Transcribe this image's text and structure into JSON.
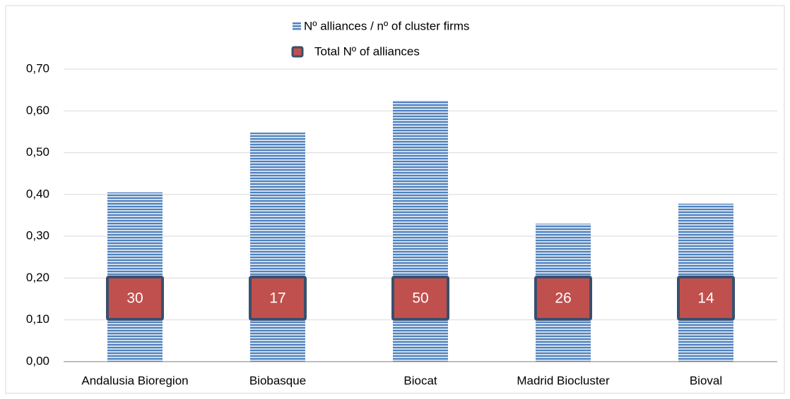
{
  "chart_data": {
    "type": "bar",
    "categories": [
      "Andalusia Bioregion",
      "Biobasque",
      "Biocat",
      "Madrid Biocluster",
      "Bioval"
    ],
    "series": [
      {
        "name": "Nº alliances / nº of cluster firms",
        "color": "#4f81bd",
        "values": [
          0.405,
          0.548,
          0.625,
          0.33,
          0.378
        ]
      },
      {
        "name": "Total Nº of alliances",
        "color": "#c0504d",
        "values": [
          30,
          17,
          50,
          26,
          14
        ]
      }
    ],
    "ylim": [
      0,
      0.7
    ],
    "yticks": [
      {
        "value": 0,
        "label": "0,00"
      },
      {
        "value": 0.1,
        "label": "0,10"
      },
      {
        "value": 0.2,
        "label": "0,20"
      },
      {
        "value": 0.3,
        "label": "0,30"
      },
      {
        "value": 0.4,
        "label": "0,40"
      },
      {
        "value": 0.5,
        "label": "0,50"
      },
      {
        "value": 0.6,
        "label": "0,60"
      },
      {
        "value": 0.7,
        "label": "0,70"
      }
    ],
    "grid": true,
    "legend": "top"
  }
}
